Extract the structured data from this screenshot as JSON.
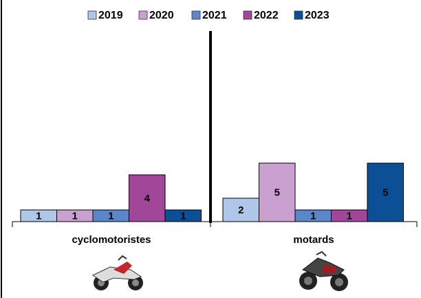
{
  "chart_data": {
    "type": "bar",
    "categories": [
      "cyclomotoristes",
      "motards"
    ],
    "series": [
      {
        "name": "2019",
        "color": "#aec6e8",
        "values": [
          1,
          2
        ]
      },
      {
        "name": "2020",
        "color": "#c9a0cf",
        "values": [
          1,
          5
        ]
      },
      {
        "name": "2021",
        "color": "#5b87c9",
        "values": [
          1,
          1
        ]
      },
      {
        "name": "2022",
        "color": "#a0479a",
        "values": [
          4,
          1
        ]
      },
      {
        "name": "2023",
        "color": "#0b4f96",
        "values": [
          1,
          5
        ]
      }
    ]
  }
}
